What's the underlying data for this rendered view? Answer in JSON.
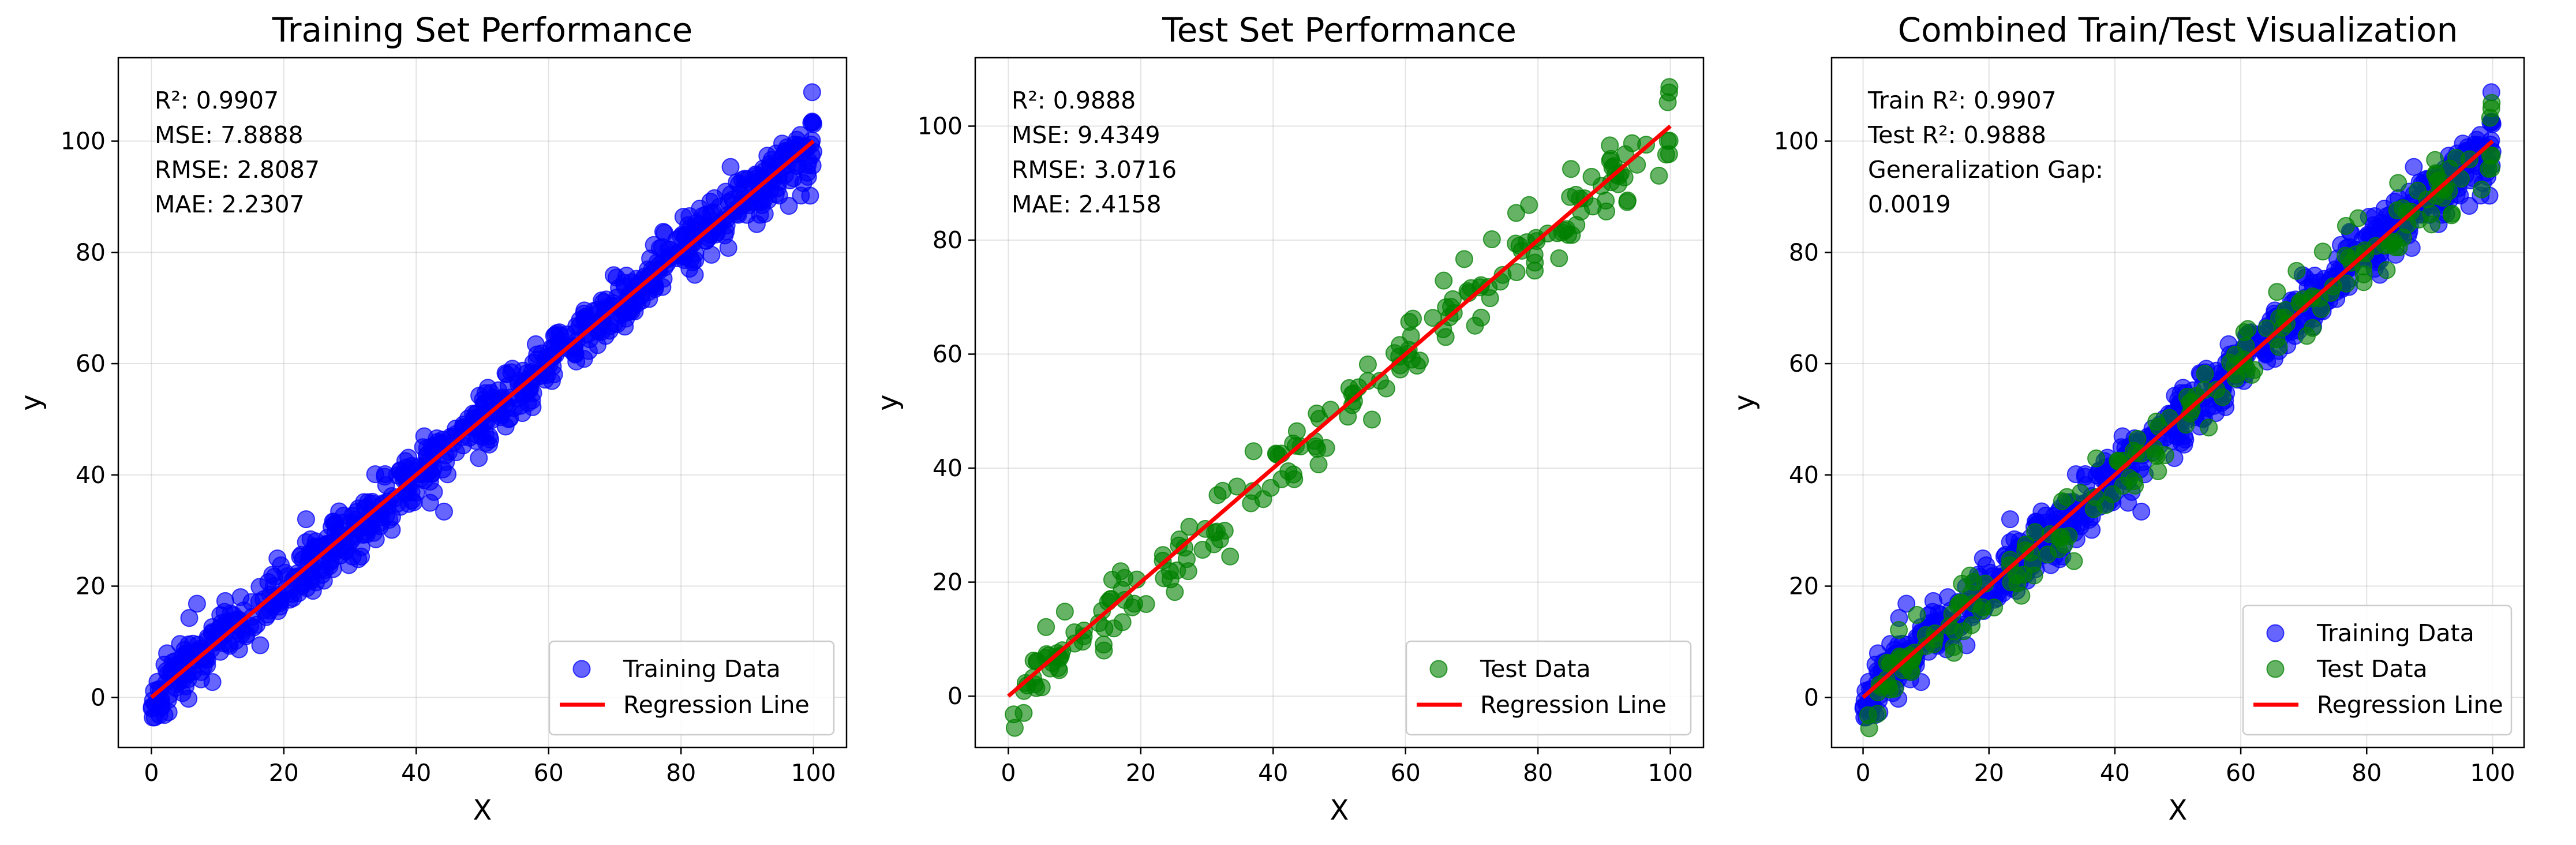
{
  "chart_data": [
    {
      "type": "scatter",
      "title": "Training Set Performance",
      "xlabel": "X",
      "ylabel": "y",
      "xlim": [
        -5,
        105
      ],
      "ylim": [
        -9,
        115
      ],
      "xticks": [
        "0",
        "20",
        "40",
        "60",
        "80",
        "100"
      ],
      "yticks": [
        "0",
        "20",
        "40",
        "60",
        "80",
        "100"
      ],
      "grid": true,
      "legend_position": "lower-right",
      "stats": [
        "R²: 0.9907",
        "MSE: 7.8888",
        "RMSE: 2.8087",
        "MAE: 2.2307"
      ],
      "series": [
        {
          "name": "Training Data",
          "kind": "scatter",
          "color": "#0000ff",
          "n": 800,
          "seed": 11,
          "noise": 2.8,
          "x_range": [
            0,
            100
          ],
          "slope": 1,
          "intercept": 0,
          "extra_points": [
            [
              99.8,
              108.8
            ],
            [
              0.5,
              -3.6
            ],
            [
              99.5,
              90.2
            ],
            [
              44.2,
              33.4
            ]
          ]
        },
        {
          "name": "Regression Line",
          "kind": "line",
          "color": "#ff0000",
          "x": [
            0,
            100
          ],
          "y": [
            0,
            100
          ]
        }
      ]
    },
    {
      "type": "scatter",
      "title": "Test Set Performance",
      "xlabel": "X",
      "ylabel": "y",
      "xlim": [
        -5,
        105
      ],
      "ylim": [
        -9,
        112
      ],
      "xticks": [
        "0",
        "20",
        "40",
        "60",
        "80",
        "100"
      ],
      "yticks": [
        "0",
        "20",
        "40",
        "60",
        "80",
        "100"
      ],
      "grid": true,
      "legend_position": "lower-right",
      "stats": [
        "R²: 0.9888",
        "MSE: 9.4349",
        "RMSE: 3.0716",
        "MAE: 2.4158"
      ],
      "series": [
        {
          "name": "Test Data",
          "kind": "scatter",
          "color": "#008000",
          "n": 200,
          "seed": 23,
          "noise": 3.1,
          "x_range": [
            0,
            100
          ],
          "slope": 1,
          "intercept": 0,
          "extra_points": [
            [
              99.8,
              105.9
            ],
            [
              99.6,
              104.2
            ],
            [
              0.8,
              -3.2
            ],
            [
              33.5,
              24.5
            ]
          ]
        },
        {
          "name": "Regression Line",
          "kind": "line",
          "color": "#ff0000",
          "x": [
            0,
            100
          ],
          "y": [
            0,
            100
          ]
        }
      ]
    },
    {
      "type": "scatter",
      "title": "Combined Train/Test Visualization",
      "xlabel": "X",
      "ylabel": "y",
      "xlim": [
        -5,
        105
      ],
      "ylim": [
        -9,
        115
      ],
      "xticks": [
        "0",
        "20",
        "40",
        "60",
        "80",
        "100"
      ],
      "yticks": [
        "0",
        "20",
        "40",
        "60",
        "80",
        "100"
      ],
      "grid": true,
      "legend_position": "lower-right",
      "stats": [
        "Train R²: 0.9907",
        "Test R²: 0.9888",
        "Generalization Gap:",
        "0.0019"
      ],
      "series": [
        {
          "name": "Training Data",
          "kind": "scatter",
          "color": "#0000ff",
          "n": 800,
          "seed": 11,
          "noise": 2.8,
          "x_range": [
            0,
            100
          ],
          "slope": 1,
          "intercept": 0,
          "extra_points": [
            [
              99.8,
              108.8
            ],
            [
              0.5,
              -3.6
            ],
            [
              99.5,
              90.2
            ],
            [
              44.2,
              33.4
            ]
          ]
        },
        {
          "name": "Test Data",
          "kind": "scatter",
          "color": "#008000",
          "n": 200,
          "seed": 23,
          "noise": 3.1,
          "x_range": [
            0,
            100
          ],
          "slope": 1,
          "intercept": 0,
          "extra_points": [
            [
              99.8,
              105.9
            ],
            [
              99.6,
              104.2
            ],
            [
              0.8,
              -3.2
            ],
            [
              33.5,
              24.5
            ]
          ]
        },
        {
          "name": "Regression Line",
          "kind": "line",
          "color": "#ff0000",
          "x": [
            0,
            100
          ],
          "y": [
            0,
            100
          ]
        }
      ]
    }
  ]
}
